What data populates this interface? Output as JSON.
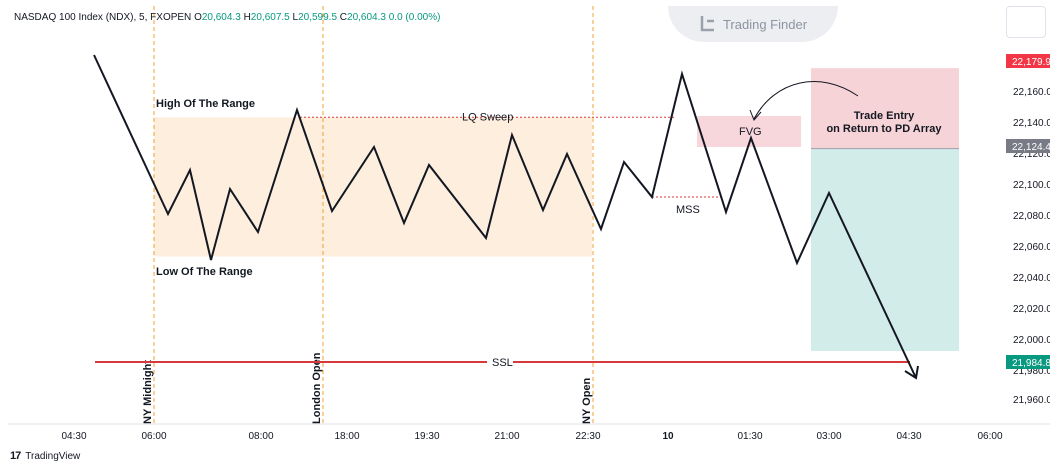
{
  "header": {
    "symbol": "NASDAQ 100 Index (NDX), 5, FXOPEN",
    "o_label": "O",
    "o_value": "20,604.3",
    "h_label": "H",
    "h_value": "20,607.5",
    "l_label": "L",
    "l_value": "20,599.5",
    "c_label": "C",
    "c_value": "20,604.3",
    "change": "0.0 (0.00%)"
  },
  "brand": {
    "watermark": "Trading Finder",
    "footer": "TradingView",
    "footer_mark": "17"
  },
  "colors": {
    "price": "#131722",
    "range_fill": "#fdeedd",
    "fvg_fill": "#f8d7dc",
    "stop_zone": "#f6d3d6",
    "target_zone": "#d2ede9",
    "ssl_line": "#d63a3a",
    "session_line": "#f0a030",
    "tag_red": "#f23645",
    "tag_grey": "#787b86",
    "tag_green": "#089981"
  },
  "chart_data": {
    "type": "line",
    "title": "NASDAQ 100 Index (NDX), 5, FXOPEN",
    "ylim": [
      21940,
      22200
    ],
    "grid": false,
    "x_ticks": [
      "04:30",
      "06:00",
      "08:00",
      "18:00",
      "19:30",
      "21:00",
      "22:30",
      "10",
      "01:30",
      "03:00",
      "04:30",
      "06:00"
    ],
    "y_ticks": [
      22160,
      22140,
      22120,
      22100,
      22080,
      22060,
      22040,
      22020,
      22000,
      21980,
      21960
    ],
    "y_tick_labels": [
      "22,160.0",
      "22,140.0",
      "22,120.0",
      "22,100.0",
      "22,080.0",
      "22,060.0",
      "22,040.0",
      "22,020.0",
      "22,000.0",
      "21,980.0",
      "21,960.0"
    ],
    "price_tags": [
      {
        "value": 22179.9,
        "label": "22,179.9",
        "color": "#f23645"
      },
      {
        "value": 22124.4,
        "label": "22,124.4",
        "color": "#787b86"
      },
      {
        "value": 21984.8,
        "label": "21,984.8",
        "color": "#089981"
      }
    ],
    "series": [
      {
        "x": [
          0,
          1.05,
          1.6,
          2.05,
          2.8,
          3.3,
          3.95,
          4.7,
          5.8,
          6.55,
          7.2,
          8.1,
          8.9,
          9.85,
          10.7,
          11.45,
          12.25,
          13.1,
          13.7,
          14.5,
          15.1,
          15.6,
          16.5,
          17.2,
          17.6,
          18.35,
          18.85,
          19.55,
          21.0,
          21.7,
          23.3
        ],
        "y": [
          22183,
          22079,
          22109,
          22051,
          22094,
          22069,
          22107,
          22147,
          22081,
          22123,
          22073,
          22114,
          22066,
          22129,
          22081,
          22120,
          22068,
          22112,
          22091,
          22174,
          22080,
          22128,
          22049,
          22093,
          22062,
          22000,
          21968,
          21960,
          21960,
          21960,
          21960
        ]
      }
    ],
    "sessions": [
      "NY Midnight",
      "London Open",
      "NY Open"
    ],
    "annotations": {
      "range_high": "High Of The Range",
      "range_low": "Low Of The Range",
      "lq_sweep": "LQ Sweep",
      "mss": "MSS",
      "fvg": "FVG",
      "ssl": "SSL",
      "trade_entry_line1": "Trade Entry",
      "trade_entry_line2": "on Return to PD Array"
    },
    "zones": {
      "range": {
        "high": 22146,
        "low": 22050
      },
      "stop": {
        "high": 22179.9,
        "low": 22124.4
      },
      "target": {
        "high": 22124.4,
        "low": 21984.8
      },
      "ssl_level": 21985
    }
  }
}
